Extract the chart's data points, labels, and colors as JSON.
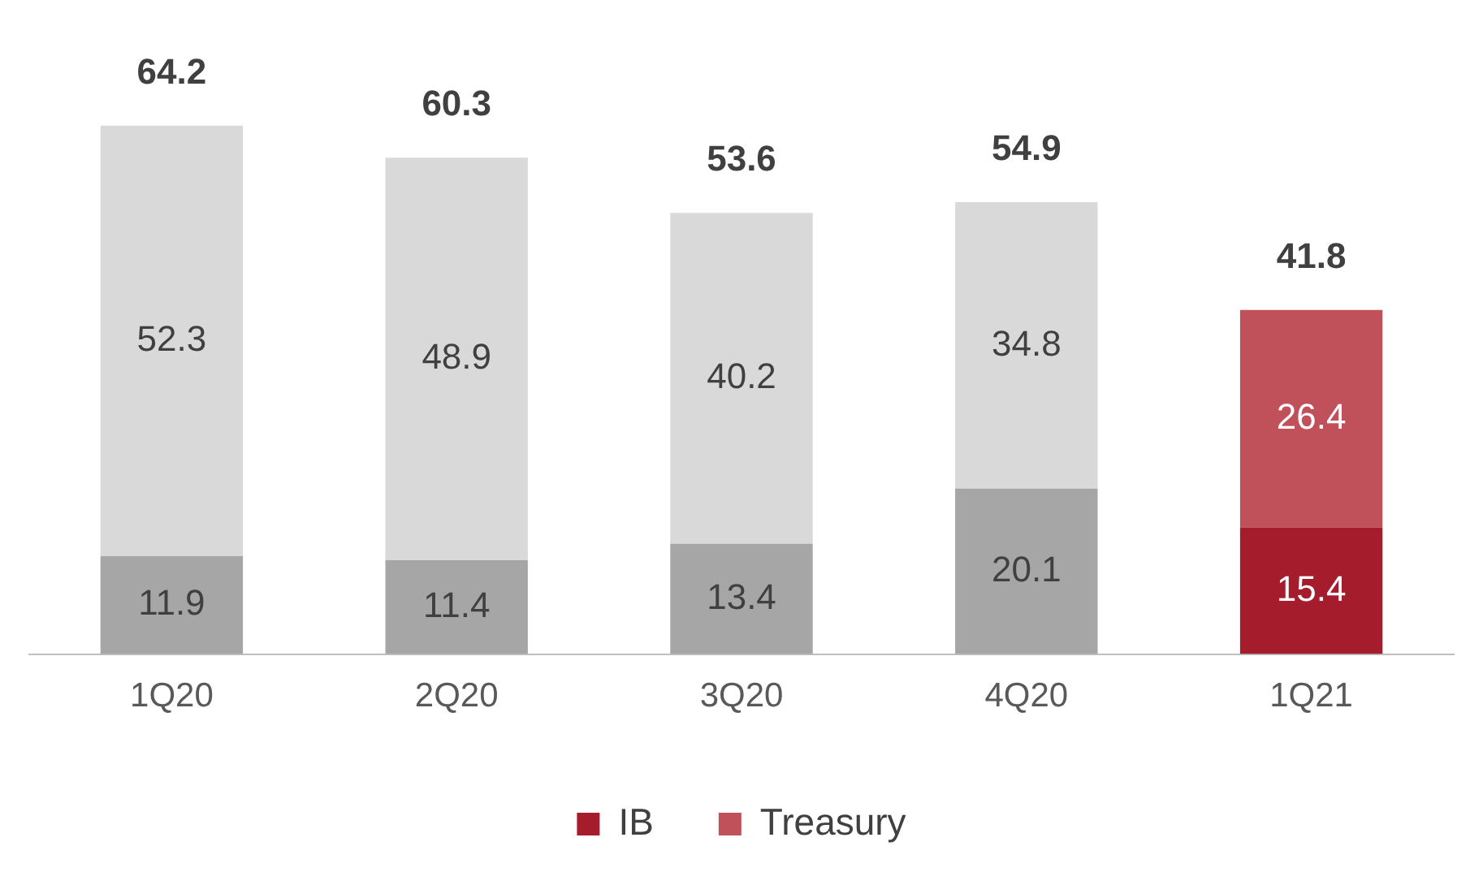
{
  "chart_data": {
    "type": "bar",
    "stacked": true,
    "categories": [
      "1Q20",
      "2Q20",
      "3Q20",
      "4Q20",
      "1Q21"
    ],
    "series": [
      {
        "name": "IB",
        "color": "#a51c2d",
        "colors": [
          "#a6a6a6",
          "#a6a6a6",
          "#a6a6a6",
          "#a6a6a6",
          "#a51c2d"
        ],
        "values": [
          11.9,
          11.4,
          13.4,
          20.1,
          15.4
        ]
      },
      {
        "name": "Treasury",
        "color": "#c0505a",
        "colors": [
          "#d9d9d9",
          "#d9d9d9",
          "#d9d9d9",
          "#d9d9d9",
          "#c0505a"
        ],
        "values": [
          52.3,
          48.9,
          40.2,
          34.8,
          26.4
        ]
      }
    ],
    "data_labels": true,
    "totals": [
      "64.2",
      "60.3",
      "53.6",
      "54.9",
      "41.8"
    ],
    "legend": "bottom",
    "grid": false,
    "tick_labels": "x"
  }
}
